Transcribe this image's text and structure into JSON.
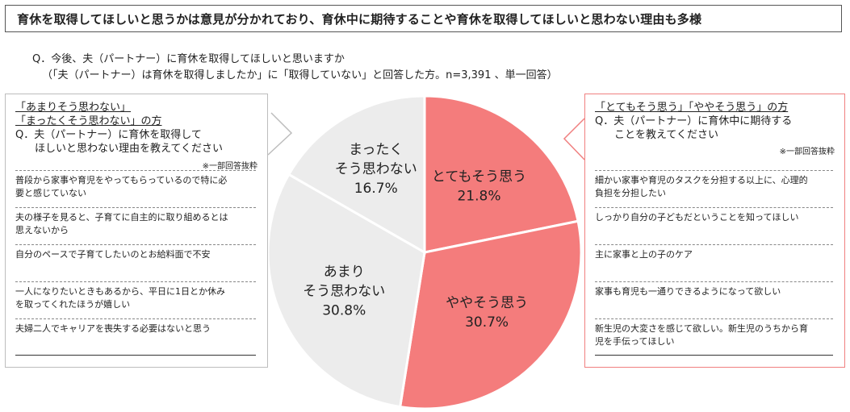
{
  "header": {
    "title": "育休を取得してほしいと思うかは意見が分かれており、育休中に期待することや育休を取得してほしいと思わない理由も多様"
  },
  "question": {
    "main": "Q．今後、夫（パートナー）に育休を取得してほしいと思いますか",
    "note": "（「夫（パートナー）は育休を取得しましたか」に「取得していない」と回答した方。n=3,391 、単一回答）"
  },
  "left_panel": {
    "group_line1": "「あまりそう思わない」",
    "group_line2": "「まったくそう思わない」の方",
    "question_line1": "Q．夫（パートナー）に育休を取得して",
    "question_line2": "ほしいと思わない理由を教えてください",
    "excerpt_note": "※一部回答抜粋",
    "responses": [
      {
        "line1": "普段から家事や育児をやってもらっているので特に必",
        "line2": "要と感じていない"
      },
      {
        "line1": "夫の様子を見ると、子育てに自主的に取り組めるとは",
        "line2": "思えないから"
      },
      {
        "line1": "自分のペースで子育てしたいのとお給料面で不安",
        "line2": ""
      },
      {
        "line1": "一人になりたいときもあるから、平日に1日とか休み",
        "line2": "を取ってくれたほうが嬉しい"
      },
      {
        "line1": "夫婦二人でキャリアを喪失する必要はないと思う",
        "line2": ""
      }
    ]
  },
  "right_panel": {
    "group_line1": "「とてもそう思う」「ややそう思う」の方",
    "question_line1": "Q．夫（パートナー）に育休中に期待する",
    "question_line2": "ことを教えてください",
    "excerpt_note": "※一部回答抜粋",
    "responses": [
      {
        "line1": "細かい家事や育児のタスクを分担する以上に、心理的",
        "line2": "負担を分担したい"
      },
      {
        "line1": "しっかり自分の子どもだということを知ってほしい",
        "line2": ""
      },
      {
        "line1": "主に家事と上の子のケア",
        "line2": ""
      },
      {
        "line1": "家事も育児も一通りできるようになって欲しい",
        "line2": ""
      },
      {
        "line1": "新生児の大変さを感じて欲しい。新生児のうちから育",
        "line2": "児を手伝ってほしい"
      }
    ]
  },
  "chart_data": {
    "type": "pie",
    "start_angle_deg": 0,
    "direction": "clockwise",
    "slices": [
      {
        "label_line1": "とてもそう思う",
        "label_line2": "",
        "value": 21.8,
        "value_label": "21.8%",
        "color": "#f47c7c"
      },
      {
        "label_line1": "ややそう思う",
        "label_line2": "",
        "value": 30.7,
        "value_label": "30.7%",
        "color": "#f47c7c"
      },
      {
        "label_line1": "あまり",
        "label_line2": "そう思わない",
        "value": 30.8,
        "value_label": "30.8%",
        "color": "#ececec"
      },
      {
        "label_line1": "まったく",
        "label_line2": "そう思わない",
        "value": 16.7,
        "value_label": "16.7%",
        "color": "#ececec"
      }
    ]
  }
}
